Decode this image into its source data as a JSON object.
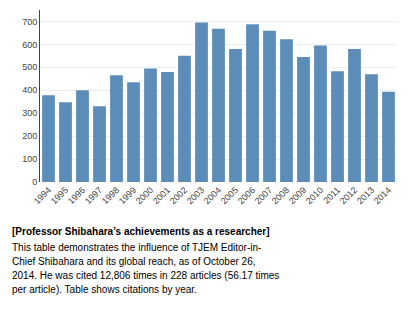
{
  "chart_data": {
    "type": "bar",
    "title": "[Professor Shibahara’s achievements as a researcher]",
    "annotations": [
      "This table demonstrates the influence of TJEM Editor-in-",
      "Chief Shibahara and its global reach, as of October 26,",
      "2014. He was cited 12,806 times in 228 articles (56.17 times",
      "per article). Table shows citations by year."
    ],
    "categories": [
      "1994",
      "1995",
      "1996",
      "1997",
      "1998",
      "1999",
      "2000",
      "2001",
      "2002",
      "2003",
      "2004",
      "2005",
      "2006",
      "2007",
      "2008",
      "2009",
      "2010",
      "2011",
      "2012",
      "2013",
      "2014"
    ],
    "values": [
      378,
      348,
      400,
      330,
      465,
      435,
      495,
      480,
      550,
      695,
      668,
      580,
      688,
      660,
      622,
      545,
      595,
      483,
      580,
      470,
      393
    ],
    "color": "#5b8db8",
    "ylim": [
      0,
      750
    ],
    "yticks": [
      0,
      100,
      200,
      300,
      400,
      500,
      600,
      700
    ],
    "grid": true
  }
}
